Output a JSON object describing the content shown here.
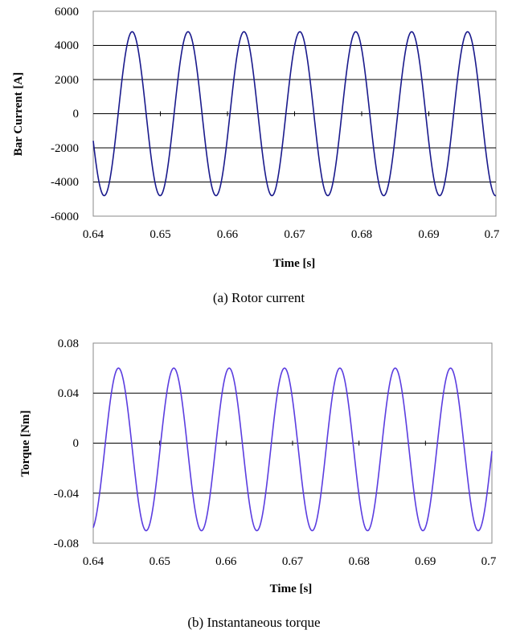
{
  "chart_data": [
    {
      "type": "line",
      "caption": "(a)  Rotor  current",
      "xlabel": "Time [s]",
      "ylabel": "Bar Current [A]",
      "xlim": [
        0.64,
        0.7
      ],
      "ylim": [
        -6000,
        6000
      ],
      "x_ticks": [
        "0.64",
        "0.65",
        "0.66",
        "0.67",
        "0.68",
        "0.69",
        "0.7"
      ],
      "y_ticks": [
        "6000",
        "4000",
        "2000",
        "0",
        "-2000",
        "-4000",
        "-6000"
      ],
      "grid": "horizontal",
      "legend": "none",
      "color": "#1a1a8c",
      "series": [
        {
          "waveform": "sinusoid",
          "amplitude": 4800,
          "period": 0.00833,
          "peak_times": [
            0.6458,
            0.6541,
            0.6625,
            0.6708,
            0.6791,
            0.6875,
            0.6958
          ]
        }
      ]
    },
    {
      "type": "line",
      "caption": "(b)  Instantaneous  torque",
      "xlabel": "Time [s]",
      "ylabel": "Torque [Nm]",
      "xlim": [
        0.64,
        0.7
      ],
      "ylim": [
        -0.08,
        0.08
      ],
      "x_ticks": [
        "0.64",
        "0.65",
        "0.66",
        "0.67",
        "0.68",
        "0.69",
        "0.7"
      ],
      "y_ticks": [
        "0.08",
        "0.04",
        "0",
        "-0.04",
        "-0.08"
      ],
      "grid": "horizontal",
      "legend": "none",
      "color": "#5b3de0",
      "series": [
        {
          "waveform": "sinusoid",
          "amplitude": 0.065,
          "offset": -0.005,
          "period": 0.00833,
          "peak_times": [
            0.6438,
            0.6521,
            0.6604,
            0.6688,
            0.6771,
            0.6854,
            0.6938
          ]
        }
      ]
    }
  ]
}
